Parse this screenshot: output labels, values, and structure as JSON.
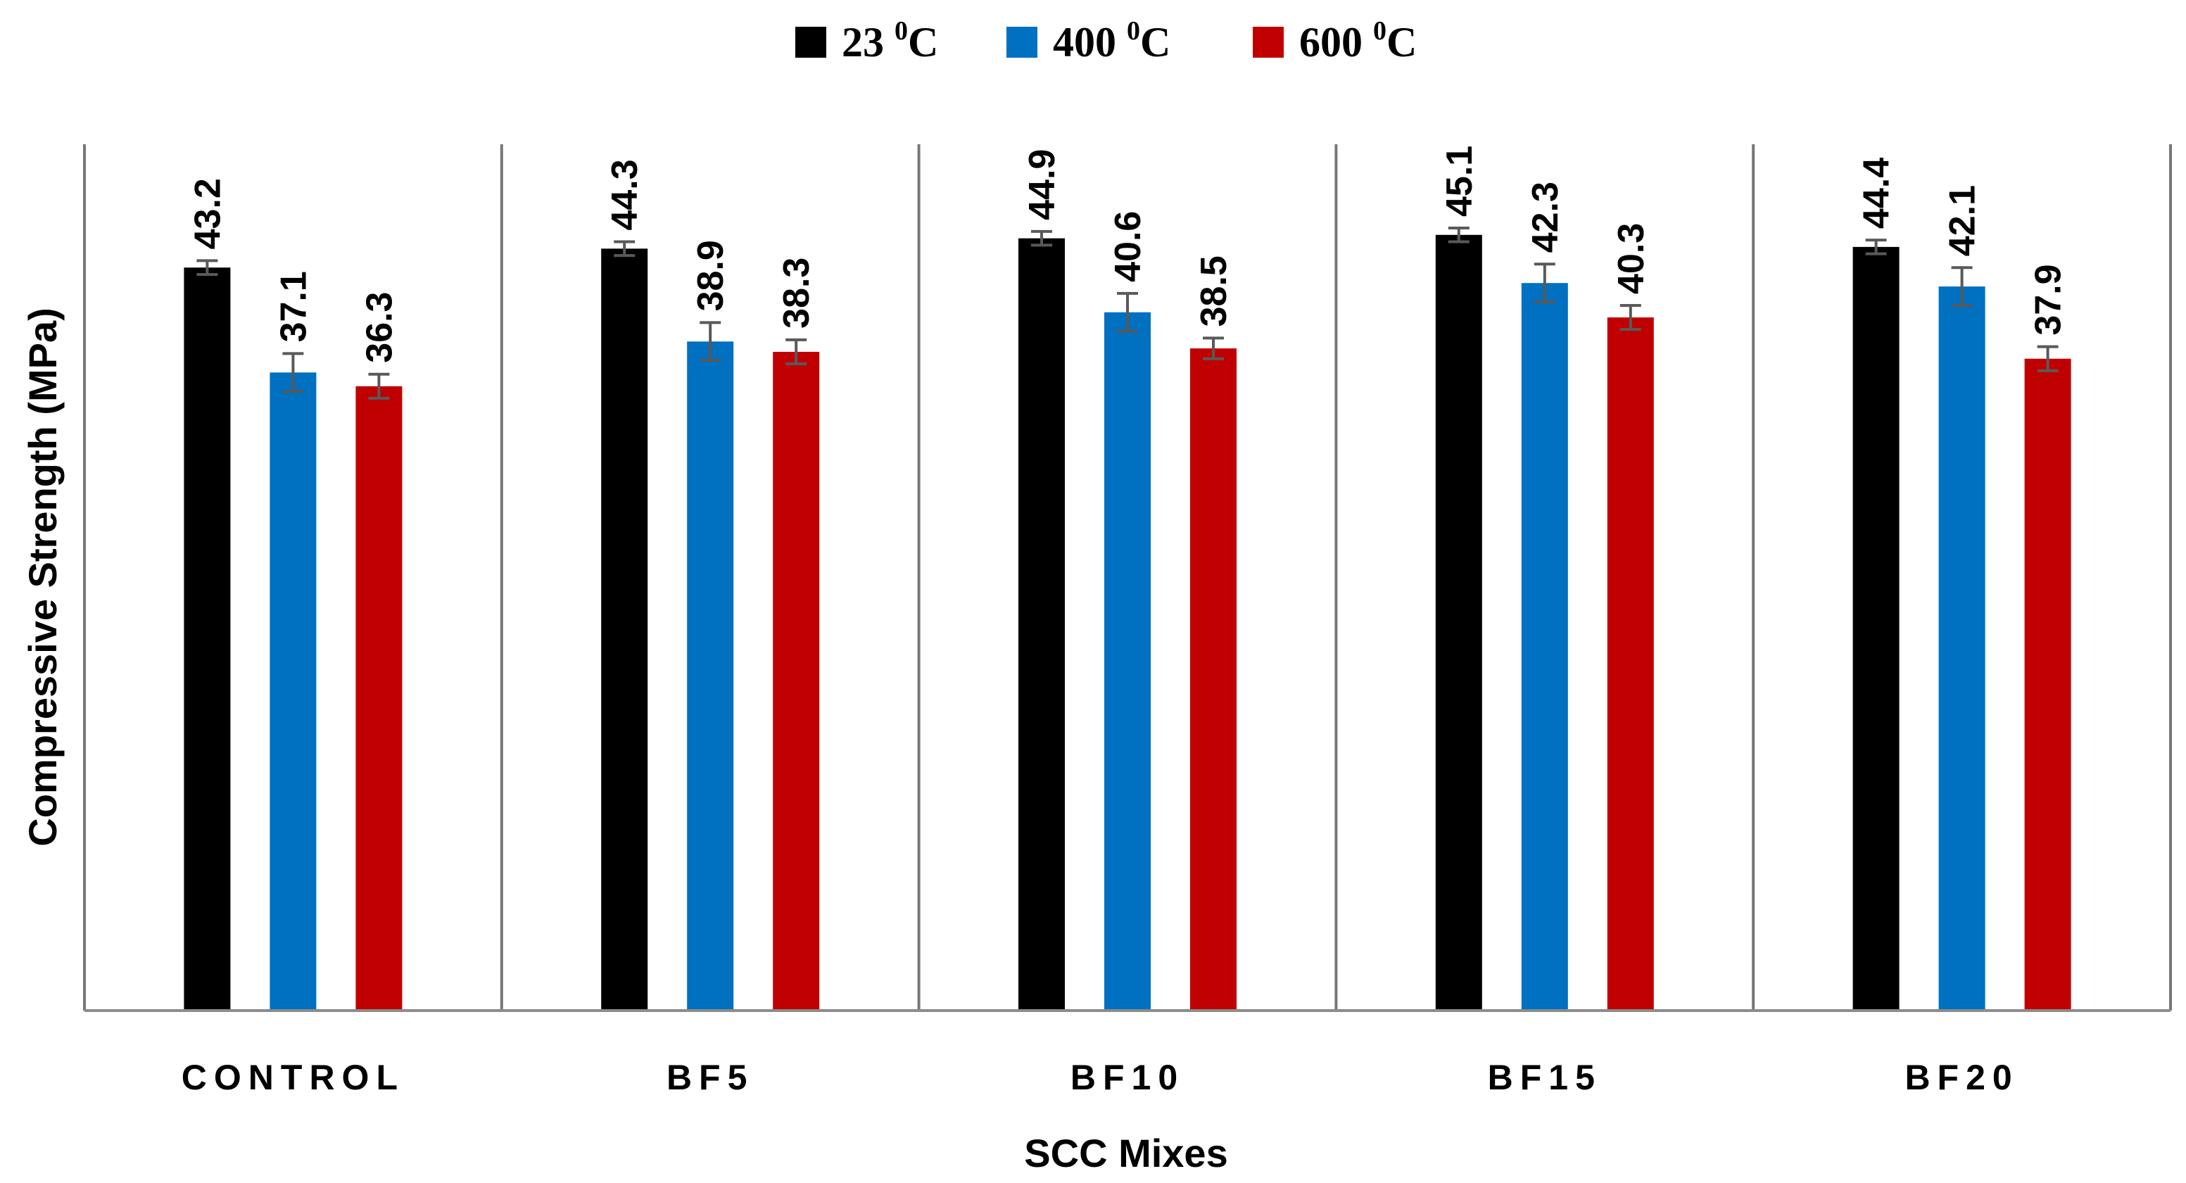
{
  "chart_data": {
    "type": "bar",
    "title": "",
    "xlabel": "SCC Mixes",
    "ylabel": "Compressive Strength (MPa)",
    "ylim": [
      0,
      50
    ],
    "grid": false,
    "legend_position": "top-center",
    "categories": [
      "CONTROL",
      "BF5",
      "BF10",
      "BF15",
      "BF20"
    ],
    "series": [
      {
        "name": "23 ⁰C",
        "name_base": "23 ",
        "name_sup": "0",
        "name_unit": "C",
        "color": "#000000",
        "values": [
          43.2,
          44.3,
          44.9,
          45.1,
          44.4
        ],
        "labels": [
          "43.2",
          "44.3",
          "44.9",
          "45.1",
          "44.4"
        ],
        "errors": [
          0.4,
          0.4,
          0.4,
          0.4,
          0.4
        ]
      },
      {
        "name": "400 ⁰C",
        "name_base": "400 ",
        "name_sup": "0",
        "name_unit": "C",
        "color": "#0070C0",
        "values": [
          37.1,
          38.9,
          40.6,
          42.3,
          42.1
        ],
        "labels": [
          "37.1",
          "38.9",
          "40.6",
          "42.3",
          "42.1"
        ],
        "errors": [
          1.1,
          1.1,
          1.1,
          1.1,
          1.1
        ]
      },
      {
        "name": "600 ⁰C",
        "name_base": "600 ",
        "name_sup": "0",
        "name_unit": "C",
        "color": "#C00000",
        "values": [
          36.3,
          38.3,
          38.5,
          40.3,
          37.9
        ],
        "labels": [
          "36.3",
          "38.3",
          "38.5",
          "40.3",
          "37.9"
        ],
        "errors": [
          0.7,
          0.7,
          0.6,
          0.7,
          0.7
        ]
      }
    ]
  }
}
